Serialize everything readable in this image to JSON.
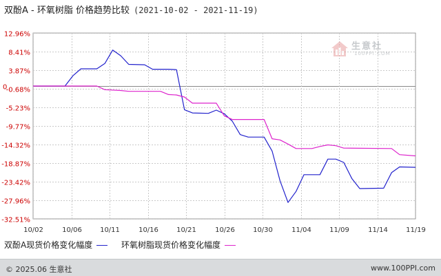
{
  "header": {
    "title": "双酚A - 环氧树脂 价格趋势比较",
    "date_range": "(2021-10-02 - 2021-11-19)"
  },
  "watermark": {
    "text": "生意社",
    "sub": "100PPI.COM"
  },
  "legend": {
    "series1_label": "双酚A现货价格变化幅度",
    "series2_label": "环氧树脂现货价格变化幅度"
  },
  "footer": {
    "copyright": "© 2025.06 生意社",
    "url": "www.100PPI.com"
  },
  "colors": {
    "series1": "#2020cc",
    "series2": "#dd22cc",
    "grid": "#c8c8c8",
    "axis": "#999999"
  },
  "chart_data": {
    "type": "line",
    "y_ticks": [
      "12.96%",
      "8.41%",
      "3.87%",
      "0",
      "-0.68%",
      "-5.23%",
      "-9.77%",
      "-14.32%",
      "-18.87%",
      "-23.42%",
      "-27.96%",
      "-32.51%"
    ],
    "y_tick_values": [
      12.96,
      8.41,
      3.87,
      0,
      -0.68,
      -5.23,
      -9.77,
      -14.32,
      -18.87,
      -23.42,
      -27.96,
      -32.51
    ],
    "x_ticks": [
      "10/02",
      "10/06",
      "10/11",
      "10/16",
      "10/21",
      "10/26",
      "10/30",
      "11/04",
      "11/09",
      "11/14",
      "11/19"
    ],
    "x_start": "2021-10-02",
    "x_end": "2021-11-19",
    "ylim": [
      -32.51,
      12.96
    ],
    "grid": true,
    "series": [
      {
        "name": "双酚A现货价格变化幅度",
        "points": [
          [
            "2021-10-02",
            0
          ],
          [
            "2021-10-06",
            0
          ],
          [
            "2021-10-07",
            2.5
          ],
          [
            "2021-10-08",
            4.2
          ],
          [
            "2021-10-10",
            4.2
          ],
          [
            "2021-10-11",
            5.5
          ],
          [
            "2021-10-12",
            8.8
          ],
          [
            "2021-10-13",
            7.4
          ],
          [
            "2021-10-14",
            5.3
          ],
          [
            "2021-10-16",
            5.2
          ],
          [
            "2021-10-17",
            4.1
          ],
          [
            "2021-10-19",
            4.1
          ],
          [
            "2021-10-20",
            4.0
          ],
          [
            "2021-10-21",
            -5.8
          ],
          [
            "2021-10-22",
            -6.6
          ],
          [
            "2021-10-24",
            -6.7
          ],
          [
            "2021-10-25",
            -5.9
          ],
          [
            "2021-10-26",
            -6.8
          ],
          [
            "2021-10-27",
            -8.6
          ],
          [
            "2021-10-28",
            -11.9
          ],
          [
            "2021-10-29",
            -12.5
          ],
          [
            "2021-10-31",
            -12.5
          ],
          [
            "2021-11-01",
            -15.9
          ],
          [
            "2021-11-02",
            -23.2
          ],
          [
            "2021-11-03",
            -28.5
          ],
          [
            "2021-11-04",
            -25.8
          ],
          [
            "2021-11-05",
            -21.7
          ],
          [
            "2021-11-07",
            -21.7
          ],
          [
            "2021-11-08",
            -17.9
          ],
          [
            "2021-11-09",
            -17.9
          ],
          [
            "2021-11-10",
            -18.7
          ],
          [
            "2021-11-11",
            -22.6
          ],
          [
            "2021-11-12",
            -25.1
          ],
          [
            "2021-11-15",
            -25.0
          ],
          [
            "2021-11-16",
            -21.2
          ],
          [
            "2021-11-17",
            -19.8
          ],
          [
            "2021-11-19",
            -19.9
          ]
        ]
      },
      {
        "name": "环氧树脂现货价格变化幅度",
        "points": [
          [
            "2021-10-02",
            0
          ],
          [
            "2021-10-10",
            0
          ],
          [
            "2021-10-11",
            -0.9
          ],
          [
            "2021-10-13",
            -1.1
          ],
          [
            "2021-10-14",
            -1.3
          ],
          [
            "2021-10-18",
            -1.3
          ],
          [
            "2021-10-19",
            -2.1
          ],
          [
            "2021-10-20",
            -2.2
          ],
          [
            "2021-10-21",
            -2.7
          ],
          [
            "2021-10-22",
            -4.2
          ],
          [
            "2021-10-25",
            -4.2
          ],
          [
            "2021-10-26",
            -7.3
          ],
          [
            "2021-10-27",
            -8.2
          ],
          [
            "2021-10-31",
            -8.2
          ],
          [
            "2021-11-01",
            -12.9
          ],
          [
            "2021-11-02",
            -13.2
          ],
          [
            "2021-11-03",
            -14.2
          ],
          [
            "2021-11-04",
            -15.3
          ],
          [
            "2021-11-06",
            -15.3
          ],
          [
            "2021-11-07",
            -14.8
          ],
          [
            "2021-11-08",
            -14.4
          ],
          [
            "2021-11-09",
            -14.6
          ],
          [
            "2021-11-10",
            -15.2
          ],
          [
            "2021-11-16",
            -15.3
          ],
          [
            "2021-11-17",
            -16.8
          ],
          [
            "2021-11-19",
            -17.1
          ]
        ]
      }
    ]
  }
}
